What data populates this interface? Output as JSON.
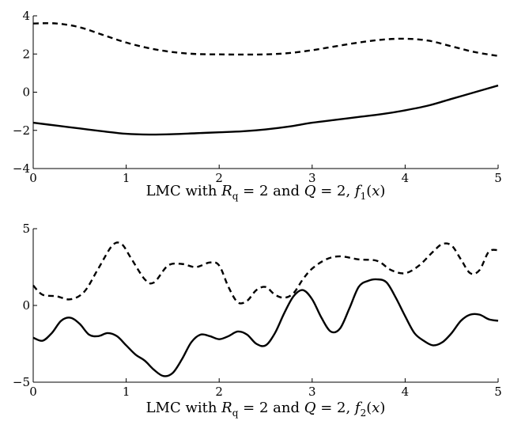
{
  "chart_data": [
    {
      "type": "line",
      "xlabel": "LMC with R_q = 2 and Q = 2, f_1(x)",
      "caption_parts": [
        "LMC with ",
        "R",
        "q",
        " = 2 and ",
        "Q",
        " = 2, ",
        "f",
        "1",
        "(",
        "x",
        ")"
      ],
      "xlim": [
        0,
        5
      ],
      "ylim": [
        -4,
        4
      ],
      "xticks": [
        "0",
        "1",
        "2",
        "3",
        "4",
        "5"
      ],
      "yticks": [
        "−4",
        "−2",
        "0",
        "2",
        "4"
      ],
      "grid": false,
      "series": [
        {
          "style": "dashed",
          "color": "#000000",
          "x": [
            0,
            0.25,
            0.5,
            0.75,
            1.0,
            1.25,
            1.5,
            1.75,
            2.0,
            2.25,
            2.5,
            2.75,
            3.0,
            3.25,
            3.5,
            3.75,
            4.0,
            4.25,
            4.5,
            4.75,
            5.0
          ],
          "y": [
            3.6,
            3.6,
            3.4,
            3.0,
            2.6,
            2.3,
            2.1,
            2.0,
            1.98,
            1.97,
            1.98,
            2.05,
            2.2,
            2.4,
            2.6,
            2.75,
            2.8,
            2.7,
            2.4,
            2.1,
            1.9
          ]
        },
        {
          "style": "solid",
          "color": "#000000",
          "x": [
            0,
            0.25,
            0.5,
            0.75,
            1.0,
            1.25,
            1.5,
            1.75,
            2.0,
            2.25,
            2.5,
            2.75,
            3.0,
            3.25,
            3.5,
            3.75,
            4.0,
            4.25,
            4.5,
            4.75,
            5.0
          ],
          "y": [
            -1.6,
            -1.75,
            -1.9,
            -2.05,
            -2.18,
            -2.22,
            -2.2,
            -2.15,
            -2.1,
            -2.05,
            -1.95,
            -1.8,
            -1.6,
            -1.45,
            -1.3,
            -1.15,
            -0.95,
            -0.7,
            -0.35,
            0.0,
            0.35
          ]
        }
      ]
    },
    {
      "type": "line",
      "xlabel": "LMC with R_q = 2 and Q = 2, f_2(x)",
      "caption_parts": [
        "LMC with ",
        "R",
        "q",
        " = 2 and ",
        "Q",
        " = 2, ",
        "f",
        "2",
        "(",
        "x",
        ")"
      ],
      "xlim": [
        0,
        5
      ],
      "ylim": [
        -5,
        5
      ],
      "xticks": [
        "0",
        "1",
        "2",
        "3",
        "4",
        "5"
      ],
      "yticks": [
        "−5",
        "0",
        "5"
      ],
      "grid": false,
      "series": [
        {
          "style": "dashed",
          "color": "#000000",
          "x": [
            0,
            0.1,
            0.25,
            0.4,
            0.55,
            0.7,
            0.85,
            0.95,
            1.05,
            1.2,
            1.3,
            1.45,
            1.6,
            1.75,
            1.9,
            2.0,
            2.1,
            2.2,
            2.3,
            2.4,
            2.5,
            2.6,
            2.7,
            2.8,
            2.9,
            3.0,
            3.15,
            3.3,
            3.5,
            3.7,
            3.85,
            4.0,
            4.15,
            4.3,
            4.4,
            4.5,
            4.6,
            4.7,
            4.8,
            4.9,
            5.0
          ],
          "y": [
            1.3,
            0.7,
            0.6,
            0.4,
            0.9,
            2.4,
            3.9,
            4.0,
            3.1,
            1.7,
            1.5,
            2.6,
            2.7,
            2.5,
            2.8,
            2.6,
            1.2,
            0.2,
            0.3,
            1.0,
            1.2,
            0.7,
            0.5,
            0.8,
            1.7,
            2.4,
            3.0,
            3.2,
            3.0,
            2.9,
            2.3,
            2.1,
            2.6,
            3.5,
            4.0,
            3.9,
            3.0,
            2.1,
            2.3,
            3.5,
            3.6
          ]
        },
        {
          "style": "solid",
          "color": "#000000",
          "x": [
            0,
            0.1,
            0.2,
            0.3,
            0.4,
            0.5,
            0.6,
            0.7,
            0.8,
            0.9,
            1.0,
            1.1,
            1.2,
            1.3,
            1.4,
            1.5,
            1.6,
            1.7,
            1.8,
            1.9,
            2.0,
            2.1,
            2.2,
            2.3,
            2.4,
            2.5,
            2.6,
            2.7,
            2.8,
            2.9,
            3.0,
            3.1,
            3.2,
            3.3,
            3.4,
            3.5,
            3.6,
            3.7,
            3.8,
            3.9,
            4.0,
            4.1,
            4.2,
            4.3,
            4.4,
            4.5,
            4.6,
            4.7,
            4.8,
            4.9,
            5.0
          ],
          "y": [
            -2.1,
            -2.3,
            -1.8,
            -1.0,
            -0.8,
            -1.2,
            -1.9,
            -2.0,
            -1.8,
            -2.0,
            -2.6,
            -3.2,
            -3.6,
            -4.2,
            -4.6,
            -4.4,
            -3.5,
            -2.4,
            -1.9,
            -2.0,
            -2.2,
            -2.0,
            -1.7,
            -1.9,
            -2.5,
            -2.6,
            -1.8,
            -0.5,
            0.6,
            1.0,
            0.4,
            -0.8,
            -1.7,
            -1.5,
            -0.2,
            1.2,
            1.6,
            1.7,
            1.5,
            0.5,
            -0.7,
            -1.8,
            -2.3,
            -2.6,
            -2.4,
            -1.8,
            -1.0,
            -0.6,
            -0.6,
            -0.9,
            -1.0
          ]
        }
      ]
    }
  ]
}
